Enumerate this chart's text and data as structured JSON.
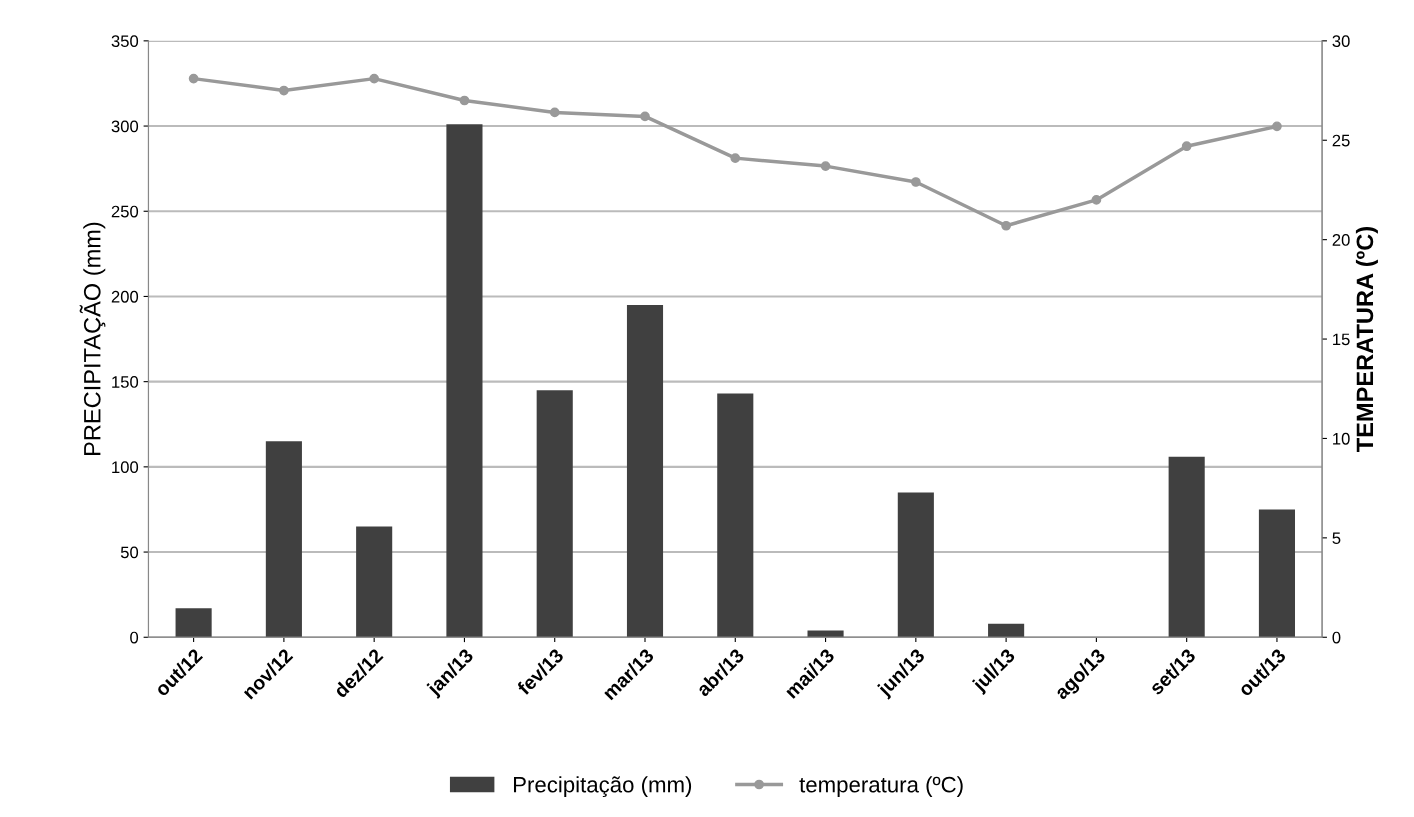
{
  "chart_data": {
    "type": "bar",
    "ylabel": "PRECIPITAÇÃO (mm)",
    "y2label": "TEMPERATURA (ºC)",
    "categories": [
      "out/12",
      "nov/12",
      "dez/12",
      "jan/13",
      "fev/13",
      "mar/13",
      "abr/13",
      "mai/13",
      "jun/13",
      "jul/13",
      "ago/13",
      "set/13",
      "out/13"
    ],
    "series": [
      {
        "name": "Precipitação (mm)",
        "color": "#404040",
        "values": [
          17,
          115,
          65,
          301,
          145,
          195,
          143,
          4,
          85,
          8,
          0,
          106,
          75
        ]
      },
      {
        "name": "temperatura (ºC)",
        "type": "line",
        "axis": "y2",
        "color": "#999999",
        "marker": "circle",
        "values": [
          28.1,
          27.5,
          28.1,
          27.0,
          26.4,
          26.2,
          24.1,
          23.7,
          22.9,
          20.7,
          22.0,
          24.7,
          25.7
        ]
      }
    ],
    "ylim": [
      0,
      350
    ],
    "yticks": [
      0,
      50,
      100,
      150,
      200,
      250,
      300,
      350
    ],
    "y2lim": [
      0,
      30
    ],
    "y2ticks": [
      0,
      5,
      10,
      15,
      20,
      25,
      30
    ],
    "grid": "y",
    "legend": "bottom"
  }
}
